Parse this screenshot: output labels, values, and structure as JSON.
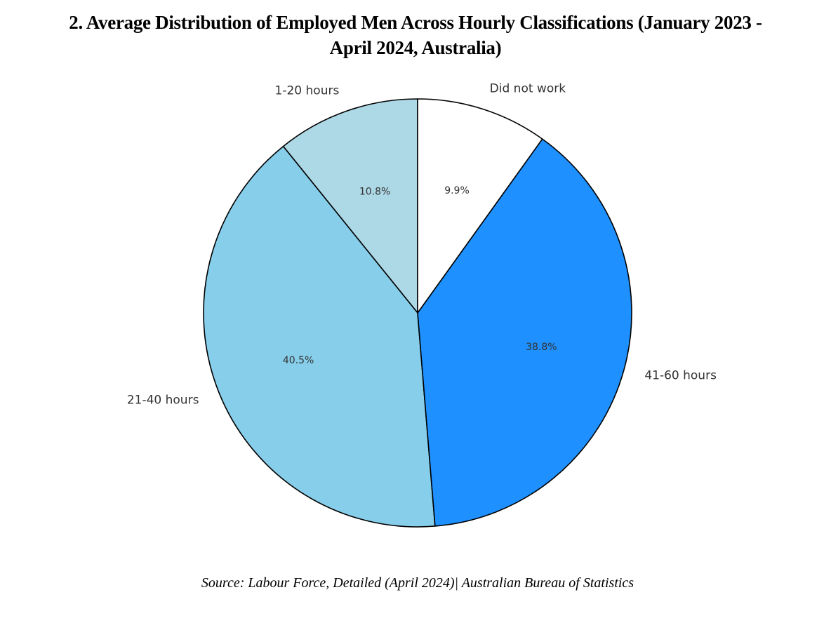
{
  "chart_data": {
    "type": "pie",
    "title": "2. Average Distribution of Employed Men Across Hourly Classifications (January 2023  - April 2024, Australia)",
    "title_lines": [
      "2. Average Distribution of Employed Men Across Hourly Classifications (January 2023  -",
      "April 2024, Australia)"
    ],
    "categories": [
      "1-20 hours",
      "21-40 hours",
      "41-60 hours",
      "Did not work"
    ],
    "values": [
      10.8,
      40.5,
      38.8,
      9.9
    ],
    "value_labels": [
      "10.8%",
      "40.5%",
      "38.8%",
      "9.9%"
    ],
    "colors": [
      "#add8e6",
      "#87ceeb",
      "#1e90ff",
      "#ffffff"
    ],
    "start_angle": 90,
    "direction": "counterclockwise",
    "edge_color": "#000000",
    "legend": null,
    "source": "Source: Labour Force, Detailed (April 2024)| Australian Bureau of Statistics"
  }
}
